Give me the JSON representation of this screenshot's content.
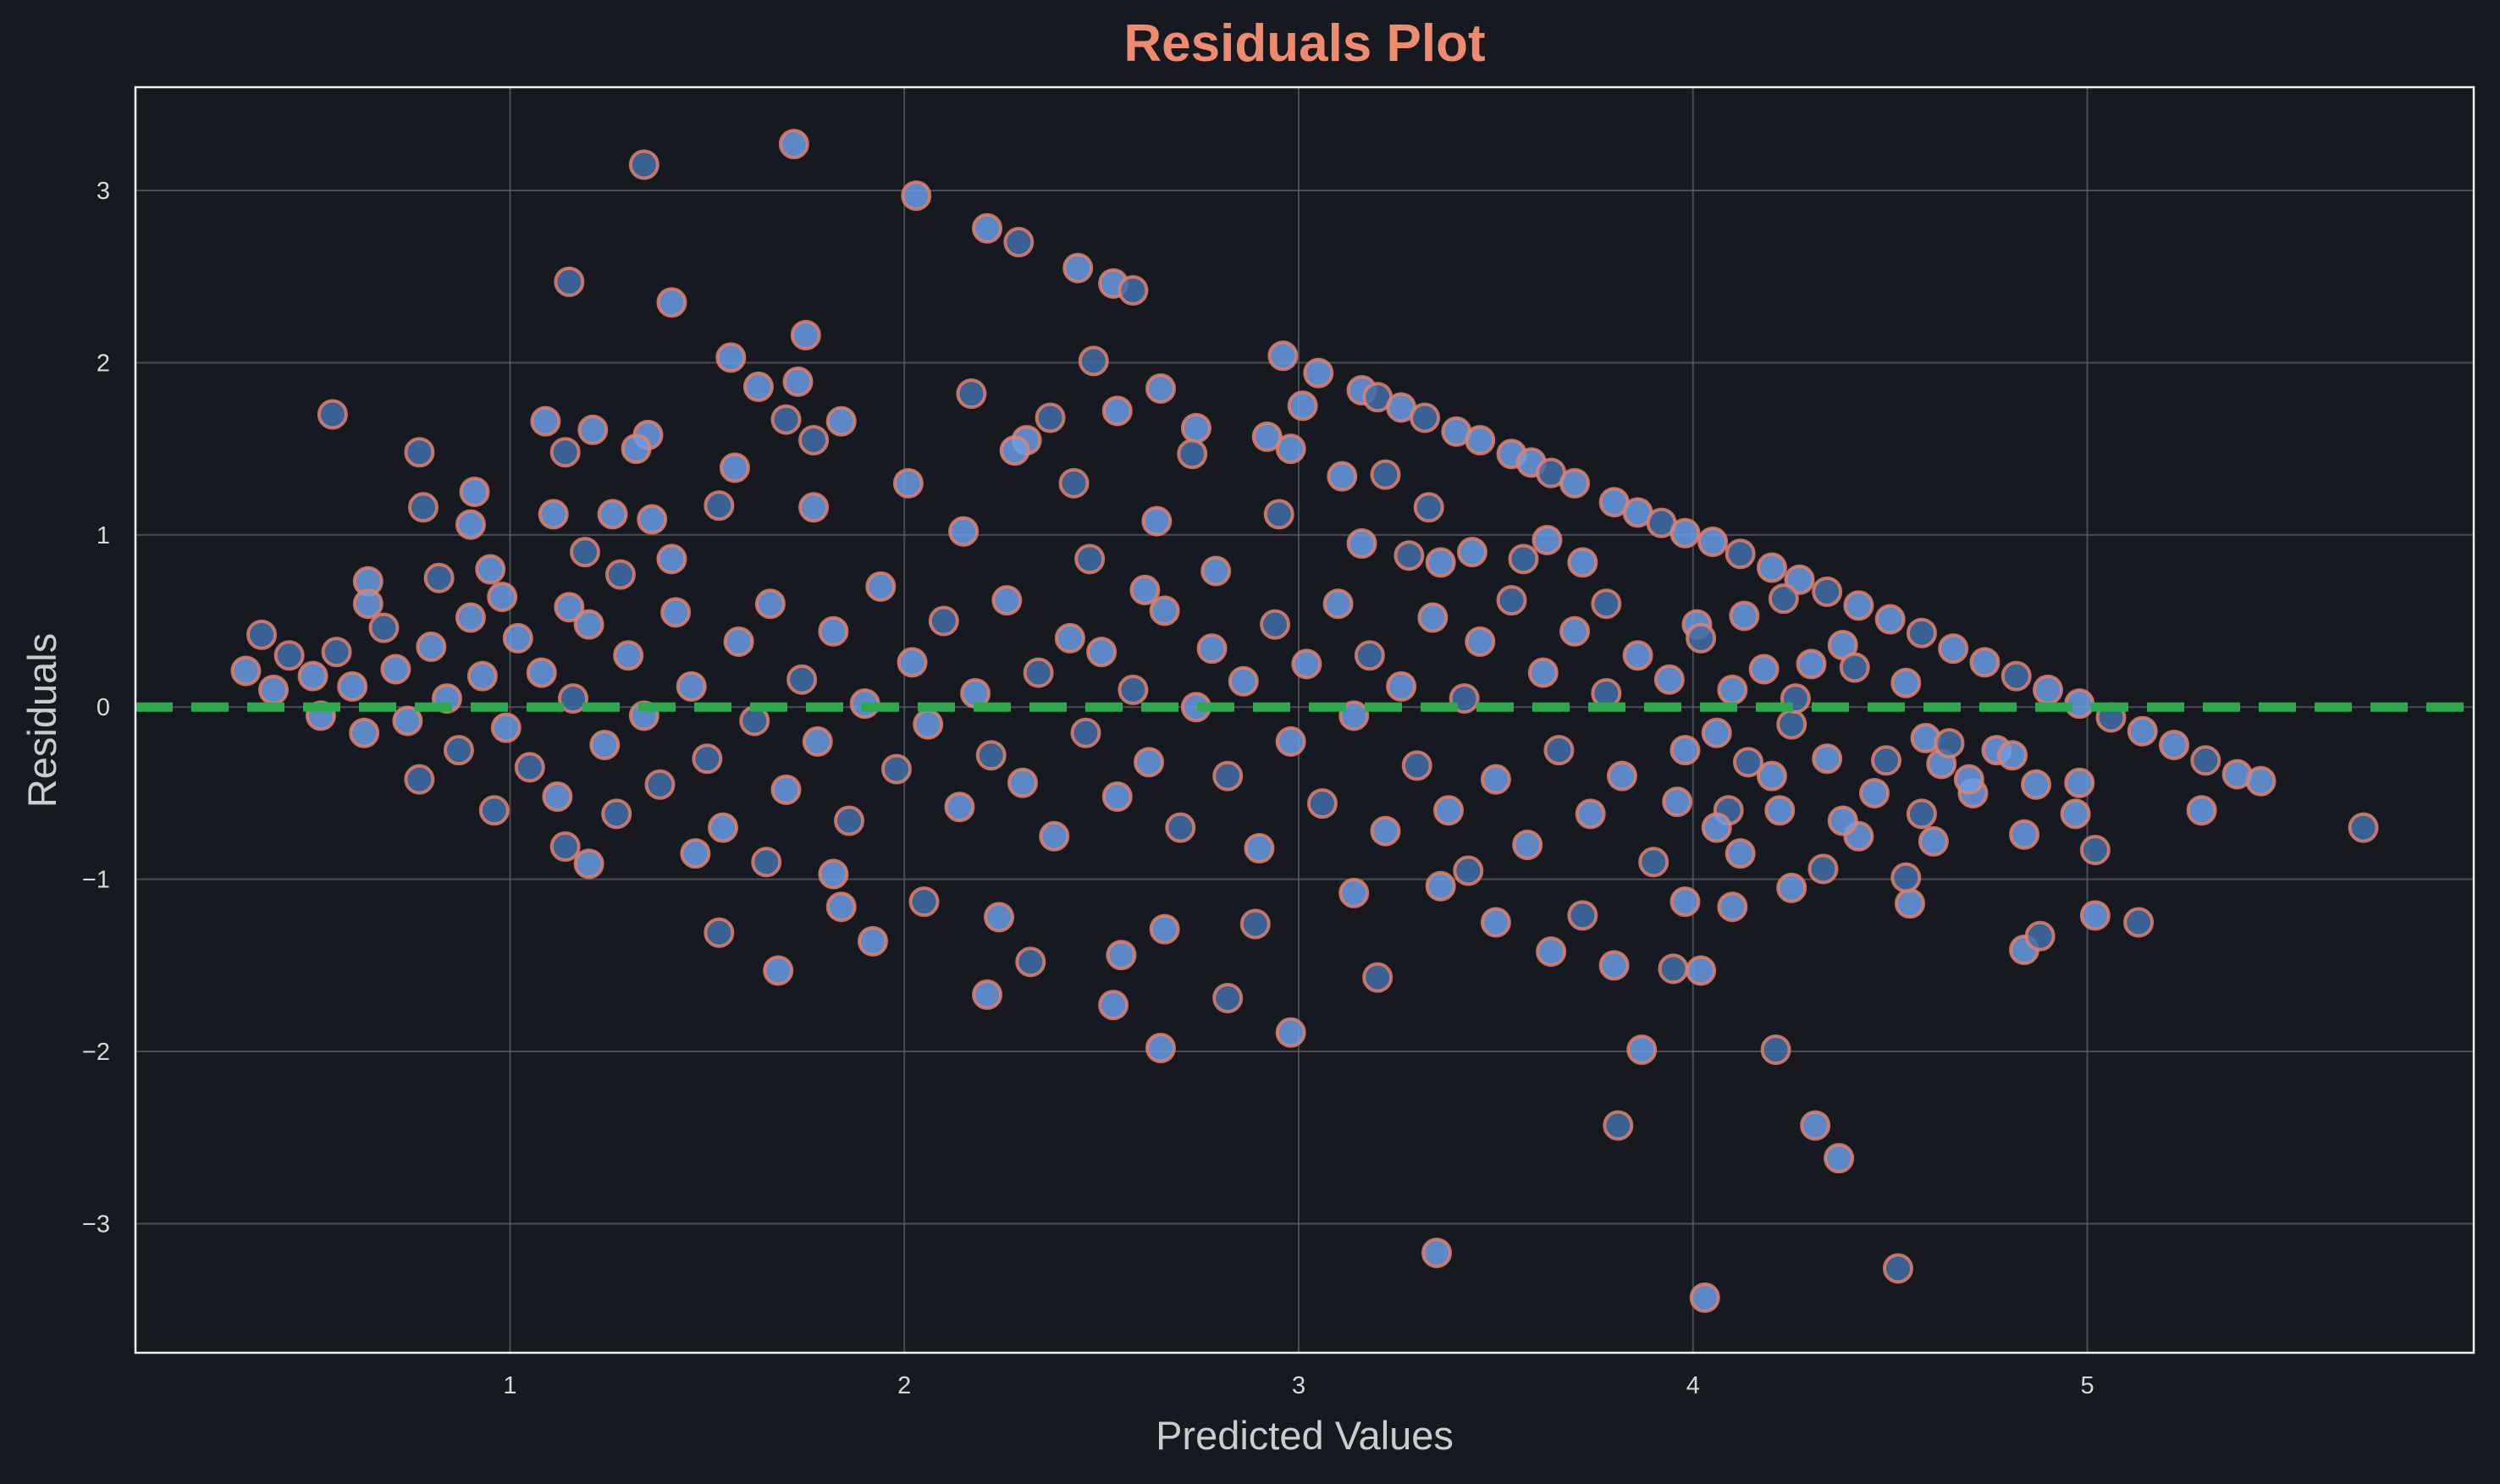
{
  "colors": {
    "background": "#161a20",
    "plot_border": "#eeeeee",
    "grid": "#5a5f66",
    "title": "#ef8a6e",
    "axis_text": "#c9ccd1",
    "tick_text": "#d7d9dc",
    "point_fill": "#6a9ce6",
    "point_fill_dark": "#3f6ea8",
    "point_edge": "#e2806c",
    "zero_line": "#2ea84f"
  },
  "chart_data": {
    "type": "scatter",
    "title": "Residuals Plot",
    "xlabel": "Predicted Values",
    "ylabel": "Residuals",
    "xlim": [
      0.05,
      5.98
    ],
    "ylim": [
      -3.75,
      3.6
    ],
    "xticks": [
      1,
      2,
      3,
      4,
      5
    ],
    "yticks": [
      -3,
      -2,
      -1,
      0,
      1,
      2,
      3
    ],
    "xtick_labels": [
      "1",
      "2",
      "3",
      "4",
      "5"
    ],
    "ytick_labels": [
      "−3",
      "−2",
      "−1",
      "0",
      "1",
      "2",
      "3"
    ],
    "grid": true,
    "reference_line": {
      "y": 0,
      "style": "dashed"
    },
    "points": [
      {
        "x": 1.34,
        "y": 3.15
      },
      {
        "x": 1.72,
        "y": 3.27
      },
      {
        "x": 2.03,
        "y": 2.97
      },
      {
        "x": 1.15,
        "y": 2.47
      },
      {
        "x": 1.41,
        "y": 2.35
      },
      {
        "x": 2.21,
        "y": 2.78
      },
      {
        "x": 2.29,
        "y": 2.7
      },
      {
        "x": 2.44,
        "y": 2.55
      },
      {
        "x": 2.53,
        "y": 2.46
      },
      {
        "x": 2.58,
        "y": 2.42
      },
      {
        "x": 1.75,
        "y": 2.16
      },
      {
        "x": 1.56,
        "y": 2.03
      },
      {
        "x": 2.48,
        "y": 2.01
      },
      {
        "x": 2.96,
        "y": 2.04
      },
      {
        "x": 3.05,
        "y": 1.94
      },
      {
        "x": 0.55,
        "y": 1.7
      },
      {
        "x": 1.63,
        "y": 1.86
      },
      {
        "x": 1.73,
        "y": 1.89
      },
      {
        "x": 2.17,
        "y": 1.82
      },
      {
        "x": 2.65,
        "y": 1.85
      },
      {
        "x": 3.16,
        "y": 1.84
      },
      {
        "x": 3.2,
        "y": 1.8
      },
      {
        "x": 3.26,
        "y": 1.74
      },
      {
        "x": 1.09,
        "y": 1.66
      },
      {
        "x": 1.7,
        "y": 1.67
      },
      {
        "x": 1.84,
        "y": 1.66
      },
      {
        "x": 2.31,
        "y": 1.55
      },
      {
        "x": 2.37,
        "y": 1.68
      },
      {
        "x": 2.54,
        "y": 1.72
      },
      {
        "x": 2.74,
        "y": 1.62
      },
      {
        "x": 3.32,
        "y": 1.68
      },
      {
        "x": 3.4,
        "y": 1.6
      },
      {
        "x": 3.46,
        "y": 1.55
      },
      {
        "x": 0.77,
        "y": 1.48
      },
      {
        "x": 1.21,
        "y": 1.61
      },
      {
        "x": 1.35,
        "y": 1.58
      },
      {
        "x": 1.14,
        "y": 1.48
      },
      {
        "x": 1.32,
        "y": 1.5
      },
      {
        "x": 1.57,
        "y": 1.39
      },
      {
        "x": 1.77,
        "y": 1.55
      },
      {
        "x": 2.01,
        "y": 1.3
      },
      {
        "x": 2.28,
        "y": 1.49
      },
      {
        "x": 2.73,
        "y": 1.47
      },
      {
        "x": 2.92,
        "y": 1.57
      },
      {
        "x": 3.11,
        "y": 1.34
      },
      {
        "x": 3.22,
        "y": 1.35
      },
      {
        "x": 3.54,
        "y": 1.47
      },
      {
        "x": 3.59,
        "y": 1.42
      },
      {
        "x": 3.64,
        "y": 1.36
      },
      {
        "x": 3.7,
        "y": 1.3
      },
      {
        "x": 0.91,
        "y": 1.25
      },
      {
        "x": 0.78,
        "y": 1.16
      },
      {
        "x": 1.11,
        "y": 1.12
      },
      {
        "x": 1.26,
        "y": 1.12
      },
      {
        "x": 1.53,
        "y": 1.17
      },
      {
        "x": 1.77,
        "y": 1.16
      },
      {
        "x": 2.15,
        "y": 1.02
      },
      {
        "x": 2.43,
        "y": 1.3
      },
      {
        "x": 2.64,
        "y": 1.08
      },
      {
        "x": 2.98,
        "y": 1.5
      },
      {
        "x": 3.33,
        "y": 1.16
      },
      {
        "x": 3.8,
        "y": 1.19
      },
      {
        "x": 3.86,
        "y": 1.13
      },
      {
        "x": 3.92,
        "y": 1.07
      },
      {
        "x": 3.98,
        "y": 1.01
      },
      {
        "x": 4.05,
        "y": 0.96
      },
      {
        "x": 4.12,
        "y": 0.89
      },
      {
        "x": 4.2,
        "y": 0.81
      },
      {
        "x": 4.27,
        "y": 0.74
      },
      {
        "x": 4.34,
        "y": 0.67
      },
      {
        "x": 4.42,
        "y": 0.59
      },
      {
        "x": 4.5,
        "y": 0.51
      },
      {
        "x": 4.58,
        "y": 0.43
      },
      {
        "x": 4.66,
        "y": 0.34
      },
      {
        "x": 4.74,
        "y": 0.26
      },
      {
        "x": 4.82,
        "y": 0.18
      },
      {
        "x": 4.9,
        "y": 0.1
      },
      {
        "x": 4.98,
        "y": 0.02
      },
      {
        "x": 5.06,
        "y": -0.06
      },
      {
        "x": 5.14,
        "y": -0.14
      },
      {
        "x": 5.22,
        "y": -0.22
      },
      {
        "x": 5.3,
        "y": -0.31
      },
      {
        "x": 5.38,
        "y": -0.39
      },
      {
        "x": 5.44,
        "y": -0.43
      },
      {
        "x": 5.7,
        "y": -0.7
      },
      {
        "x": 5.29,
        "y": -0.6
      },
      {
        "x": 4.98,
        "y": -0.44
      },
      {
        "x": 5.02,
        "y": -0.83
      },
      {
        "x": 4.97,
        "y": -0.62
      },
      {
        "x": 5.02,
        "y": -1.21
      },
      {
        "x": 5.13,
        "y": -1.25
      },
      {
        "x": 4.84,
        "y": -0.74
      },
      {
        "x": 4.84,
        "y": -1.41
      },
      {
        "x": 4.88,
        "y": -1.33
      },
      {
        "x": 4.87,
        "y": -0.45
      },
      {
        "x": 4.55,
        "y": -1.14
      },
      {
        "x": 4.54,
        "y": -0.99
      },
      {
        "x": 4.61,
        "y": -0.78
      },
      {
        "x": 4.42,
        "y": -0.75
      },
      {
        "x": 4.33,
        "y": -0.94
      },
      {
        "x": 4.25,
        "y": -1.05
      },
      {
        "x": 4.38,
        "y": -0.66
      },
      {
        "x": 4.49,
        "y": -0.31
      },
      {
        "x": 4.63,
        "y": -0.33
      },
      {
        "x": 4.71,
        "y": -0.5
      },
      {
        "x": 4.21,
        "y": -1.99
      },
      {
        "x": 4.31,
        "y": -2.43
      },
      {
        "x": 4.37,
        "y": -2.62
      },
      {
        "x": 4.52,
        "y": -3.26
      },
      {
        "x": 4.03,
        "y": -3.43
      },
      {
        "x": 3.35,
        "y": -3.17
      },
      {
        "x": 3.81,
        "y": -2.43
      },
      {
        "x": 3.87,
        "y": -1.99
      },
      {
        "x": 4.02,
        "y": -1.53
      },
      {
        "x": 3.95,
        "y": -1.52
      },
      {
        "x": 3.8,
        "y": -1.5
      },
      {
        "x": 3.64,
        "y": -1.42
      },
      {
        "x": 3.2,
        "y": -1.57
      },
      {
        "x": 2.98,
        "y": -1.89
      },
      {
        "x": 2.65,
        "y": -1.98
      },
      {
        "x": 2.82,
        "y": -1.69
      },
      {
        "x": 2.53,
        "y": -1.73
      },
      {
        "x": 2.55,
        "y": -1.44
      },
      {
        "x": 2.32,
        "y": -1.48
      },
      {
        "x": 2.21,
        "y": -1.67
      },
      {
        "x": 1.68,
        "y": -1.53
      },
      {
        "x": 1.53,
        "y": -1.31
      },
      {
        "x": 1.92,
        "y": -1.36
      },
      {
        "x": 1.84,
        "y": -1.16
      },
      {
        "x": 2.05,
        "y": -1.13
      },
      {
        "x": 2.24,
        "y": -1.22
      },
      {
        "x": 2.66,
        "y": -1.29
      },
      {
        "x": 2.89,
        "y": -1.26
      },
      {
        "x": 3.14,
        "y": -1.08
      },
      {
        "x": 3.5,
        "y": -1.25
      },
      {
        "x": 3.72,
        "y": -1.21
      },
      {
        "x": 3.98,
        "y": -1.13
      },
      {
        "x": 4.1,
        "y": -1.16
      },
      {
        "x": 1.14,
        "y": -0.81
      },
      {
        "x": 1.2,
        "y": -0.91
      },
      {
        "x": 1.47,
        "y": -0.85
      },
      {
        "x": 1.65,
        "y": -0.9
      },
      {
        "x": 1.82,
        "y": -0.97
      },
      {
        "x": 3.36,
        "y": -1.04
      },
      {
        "x": 3.43,
        "y": -0.95
      },
      {
        "x": 3.96,
        "y": -0.55
      },
      {
        "x": 4.12,
        "y": -0.85
      },
      {
        "x": 4.09,
        "y": -0.6
      },
      {
        "x": 4.2,
        "y": -0.4
      },
      {
        "x": 4.06,
        "y": -0.15
      },
      {
        "x": 4.25,
        "y": -0.1
      },
      {
        "x": 4.01,
        "y": 0.48
      },
      {
        "x": 4.13,
        "y": 0.53
      },
      {
        "x": 4.23,
        "y": 0.63
      },
      {
        "x": 4.3,
        "y": 0.25
      },
      {
        "x": 4.38,
        "y": 0.36
      },
      {
        "x": 4.41,
        "y": 0.23
      },
      {
        "x": 4.54,
        "y": 0.14
      },
      {
        "x": 4.59,
        "y": -0.18
      },
      {
        "x": 4.65,
        "y": -0.21
      },
      {
        "x": 4.77,
        "y": -0.25
      },
      {
        "x": 4.81,
        "y": -0.28
      },
      {
        "x": 3.78,
        "y": 0.6
      },
      {
        "x": 3.72,
        "y": 0.84
      },
      {
        "x": 3.63,
        "y": 0.97
      },
      {
        "x": 3.57,
        "y": 0.86
      },
      {
        "x": 3.44,
        "y": 0.9
      },
      {
        "x": 3.36,
        "y": 0.84
      },
      {
        "x": 3.28,
        "y": 0.88
      },
      {
        "x": 3.16,
        "y": 0.95
      },
      {
        "x": 3.01,
        "y": 1.75
      },
      {
        "x": 2.95,
        "y": 1.12
      },
      {
        "x": 2.79,
        "y": 0.79
      },
      {
        "x": 2.61,
        "y": 0.68
      },
      {
        "x": 2.47,
        "y": 0.86
      },
      {
        "x": 0.64,
        "y": 0.73
      },
      {
        "x": 0.64,
        "y": 0.6
      },
      {
        "x": 0.82,
        "y": 0.75
      },
      {
        "x": 0.9,
        "y": 1.06
      },
      {
        "x": 0.95,
        "y": 0.8
      },
      {
        "x": 1.19,
        "y": 0.9
      },
      {
        "x": 1.36,
        "y": 1.09
      },
      {
        "x": 1.41,
        "y": 0.86
      },
      {
        "x": 1.28,
        "y": 0.77
      },
      {
        "x": 1.15,
        "y": 0.58
      },
      {
        "x": 0.98,
        "y": 0.64
      },
      {
        "x": 0.37,
        "y": 0.42
      },
      {
        "x": 0.33,
        "y": 0.21
      },
      {
        "x": 0.4,
        "y": 0.1
      },
      {
        "x": 0.44,
        "y": 0.3
      },
      {
        "x": 0.5,
        "y": 0.18
      },
      {
        "x": 0.52,
        "y": -0.05
      },
      {
        "x": 0.56,
        "y": 0.32
      },
      {
        "x": 0.6,
        "y": 0.12
      },
      {
        "x": 0.63,
        "y": -0.15
      },
      {
        "x": 0.68,
        "y": 0.46
      },
      {
        "x": 0.71,
        "y": 0.22
      },
      {
        "x": 0.74,
        "y": -0.08
      },
      {
        "x": 0.77,
        "y": -0.42
      },
      {
        "x": 0.8,
        "y": 0.35
      },
      {
        "x": 0.84,
        "y": 0.05
      },
      {
        "x": 0.87,
        "y": -0.25
      },
      {
        "x": 0.9,
        "y": 0.52
      },
      {
        "x": 0.93,
        "y": 0.18
      },
      {
        "x": 0.96,
        "y": -0.6
      },
      {
        "x": 0.99,
        "y": -0.12
      },
      {
        "x": 1.02,
        "y": 0.4
      },
      {
        "x": 1.05,
        "y": -0.35
      },
      {
        "x": 1.08,
        "y": 0.2
      },
      {
        "x": 1.12,
        "y": -0.52
      },
      {
        "x": 1.16,
        "y": 0.05
      },
      {
        "x": 1.2,
        "y": 0.48
      },
      {
        "x": 1.24,
        "y": -0.22
      },
      {
        "x": 1.27,
        "y": -0.62
      },
      {
        "x": 1.3,
        "y": 0.3
      },
      {
        "x": 1.34,
        "y": -0.05
      },
      {
        "x": 1.38,
        "y": -0.45
      },
      {
        "x": 1.42,
        "y": 0.55
      },
      {
        "x": 1.46,
        "y": 0.12
      },
      {
        "x": 1.5,
        "y": -0.3
      },
      {
        "x": 1.54,
        "y": -0.7
      },
      {
        "x": 1.58,
        "y": 0.38
      },
      {
        "x": 1.62,
        "y": -0.08
      },
      {
        "x": 1.66,
        "y": 0.6
      },
      {
        "x": 1.7,
        "y": -0.48
      },
      {
        "x": 1.74,
        "y": 0.16
      },
      {
        "x": 1.78,
        "y": -0.2
      },
      {
        "x": 1.82,
        "y": 0.44
      },
      {
        "x": 1.86,
        "y": -0.66
      },
      {
        "x": 1.9,
        "y": 0.02
      },
      {
        "x": 1.94,
        "y": 0.7
      },
      {
        "x": 1.98,
        "y": -0.36
      },
      {
        "x": 2.02,
        "y": 0.26
      },
      {
        "x": 2.06,
        "y": -0.1
      },
      {
        "x": 2.1,
        "y": 0.5
      },
      {
        "x": 2.14,
        "y": -0.58
      },
      {
        "x": 2.18,
        "y": 0.08
      },
      {
        "x": 2.22,
        "y": -0.28
      },
      {
        "x": 2.26,
        "y": 0.62
      },
      {
        "x": 2.3,
        "y": -0.44
      },
      {
        "x": 2.34,
        "y": 0.2
      },
      {
        "x": 2.38,
        "y": -0.75
      },
      {
        "x": 2.42,
        "y": 0.4
      },
      {
        "x": 2.46,
        "y": -0.15
      },
      {
        "x": 2.5,
        "y": 0.32
      },
      {
        "x": 2.54,
        "y": -0.52
      },
      {
        "x": 2.58,
        "y": 0.1
      },
      {
        "x": 2.62,
        "y": -0.32
      },
      {
        "x": 2.66,
        "y": 0.56
      },
      {
        "x": 2.7,
        "y": -0.7
      },
      {
        "x": 2.74,
        "y": 0.0
      },
      {
        "x": 2.78,
        "y": 0.34
      },
      {
        "x": 2.82,
        "y": -0.4
      },
      {
        "x": 2.86,
        "y": 0.15
      },
      {
        "x": 2.9,
        "y": -0.82
      },
      {
        "x": 2.94,
        "y": 0.48
      },
      {
        "x": 2.98,
        "y": -0.2
      },
      {
        "x": 3.02,
        "y": 0.25
      },
      {
        "x": 3.06,
        "y": -0.56
      },
      {
        "x": 3.1,
        "y": 0.6
      },
      {
        "x": 3.14,
        "y": -0.05
      },
      {
        "x": 3.18,
        "y": 0.3
      },
      {
        "x": 3.22,
        "y": -0.72
      },
      {
        "x": 3.26,
        "y": 0.12
      },
      {
        "x": 3.3,
        "y": -0.34
      },
      {
        "x": 3.34,
        "y": 0.52
      },
      {
        "x": 3.38,
        "y": -0.6
      },
      {
        "x": 3.42,
        "y": 0.05
      },
      {
        "x": 3.46,
        "y": 0.38
      },
      {
        "x": 3.5,
        "y": -0.42
      },
      {
        "x": 3.54,
        "y": 0.62
      },
      {
        "x": 3.58,
        "y": -0.8
      },
      {
        "x": 3.62,
        "y": 0.2
      },
      {
        "x": 3.66,
        "y": -0.25
      },
      {
        "x": 3.7,
        "y": 0.44
      },
      {
        "x": 3.74,
        "y": -0.62
      },
      {
        "x": 3.78,
        "y": 0.08
      },
      {
        "x": 3.82,
        "y": -0.4
      },
      {
        "x": 3.86,
        "y": 0.3
      },
      {
        "x": 3.9,
        "y": -0.9
      },
      {
        "x": 3.94,
        "y": 0.16
      },
      {
        "x": 3.98,
        "y": -0.25
      },
      {
        "x": 4.02,
        "y": 0.4
      },
      {
        "x": 4.06,
        "y": -0.7
      },
      {
        "x": 4.1,
        "y": 0.1
      },
      {
        "x": 4.14,
        "y": -0.32
      },
      {
        "x": 4.18,
        "y": 0.22
      },
      {
        "x": 4.22,
        "y": -0.6
      },
      {
        "x": 4.26,
        "y": 0.05
      },
      {
        "x": 4.34,
        "y": -0.3
      },
      {
        "x": 4.46,
        "y": -0.5
      },
      {
        "x": 4.58,
        "y": -0.62
      },
      {
        "x": 4.7,
        "y": -0.42
      }
    ]
  }
}
